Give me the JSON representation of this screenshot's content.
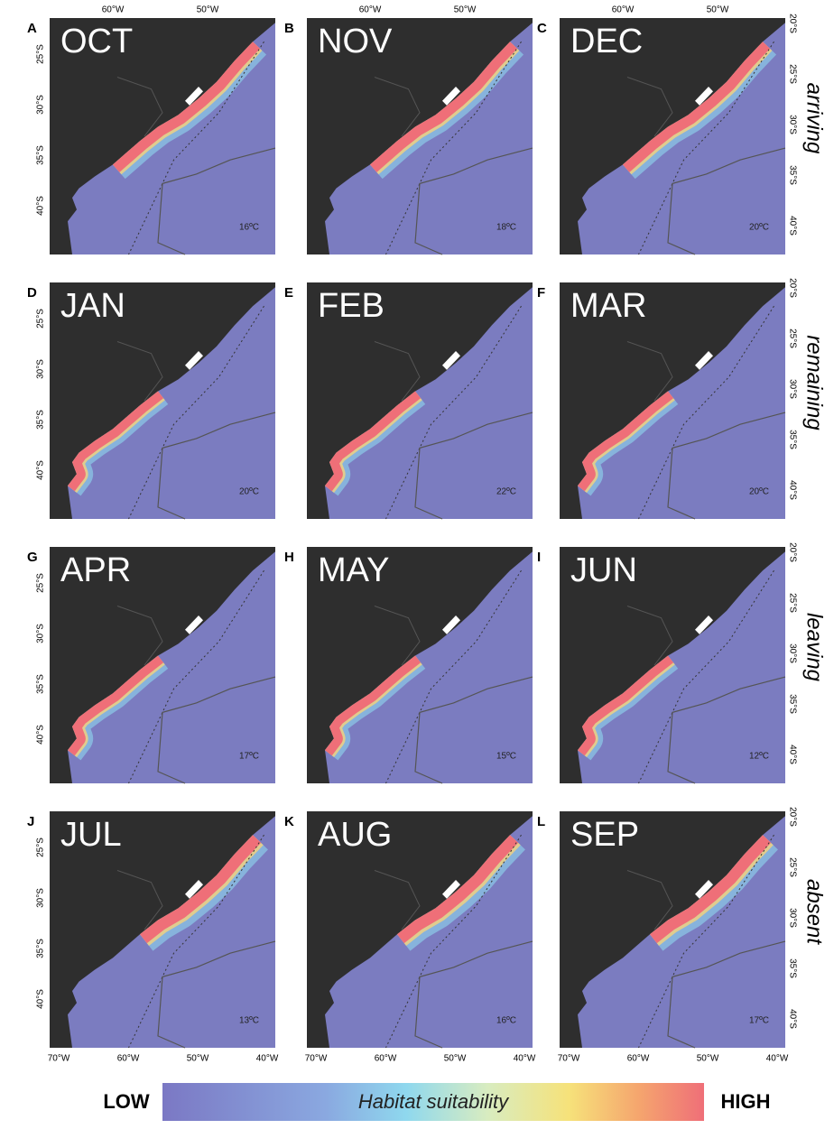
{
  "panels": [
    {
      "letter": "A",
      "month": "OCT",
      "temperature": "16ºC"
    },
    {
      "letter": "B",
      "month": "NOV",
      "temperature": "18ºC"
    },
    {
      "letter": "C",
      "month": "DEC",
      "temperature": "20ºC"
    },
    {
      "letter": "D",
      "month": "JAN",
      "temperature": "20ºC"
    },
    {
      "letter": "E",
      "month": "FEB",
      "temperature": "22ºC"
    },
    {
      "letter": "F",
      "month": "MAR",
      "temperature": "20ºC"
    },
    {
      "letter": "G",
      "month": "APR",
      "temperature": "17ºC"
    },
    {
      "letter": "H",
      "month": "MAY",
      "temperature": "15ºC"
    },
    {
      "letter": "I",
      "month": "JUN",
      "temperature": "12ºC"
    },
    {
      "letter": "J",
      "month": "JUL",
      "temperature": "13ºC"
    },
    {
      "letter": "K",
      "month": "AUG",
      "temperature": "16ºC"
    },
    {
      "letter": "L",
      "month": "SEP",
      "temperature": "17ºC"
    }
  ],
  "row_labels": [
    "arriving",
    "remaining",
    "leaving",
    "absent"
  ],
  "top_axis_labels": [
    "60°W",
    "50°W"
  ],
  "left_axis_labels": [
    "25°S",
    "30°S",
    "35°S",
    "40°S"
  ],
  "right_axis_labels": [
    "20°S",
    "25°S",
    "30°S",
    "35°S",
    "40°S"
  ],
  "bottom_axis_labels": [
    "70°W",
    "60°W",
    "50°W",
    "40°W"
  ],
  "colorbar": {
    "low": "LOW",
    "title": "Habitat suitability",
    "high": "HIGH"
  }
}
